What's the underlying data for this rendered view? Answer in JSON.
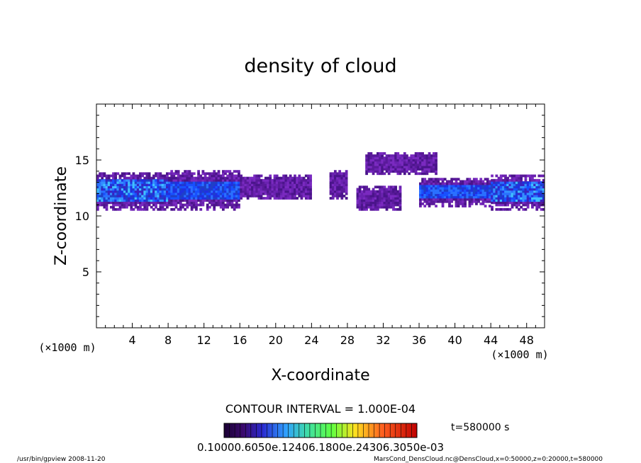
{
  "chart_data": {
    "type": "heatmap",
    "title": "density of cloud",
    "xlabel": "X-coordinate",
    "ylabel": "Z-coordinate",
    "x_unit_label": "(×1000 m)",
    "y_unit_label": "(×1000 m)",
    "xlim": [
      0,
      50
    ],
    "ylim": [
      0,
      20
    ],
    "x_ticks": [
      "4",
      "8",
      "12",
      "16",
      "20",
      "24",
      "28",
      "32",
      "36",
      "40",
      "44",
      "48"
    ],
    "y_ticks": [
      "5",
      "10",
      "15"
    ],
    "contour_interval_label": "CONTOUR INTERVAL = 1.000E-04",
    "time_label": "t=580000 s",
    "colorbar_label": "0.10000.6050e.12406.1800e.24306.3050e-03",
    "colorbar_colors": [
      "#1a0033",
      "#3b0a6e",
      "#5b1a9e",
      "#2a2ad0",
      "#2060ff",
      "#30a0ff",
      "#40d0e0",
      "#40e0a0",
      "#60ff40",
      "#c0ff30",
      "#ffe020",
      "#ffa020",
      "#ff6020",
      "#ff2010",
      "#c00000"
    ],
    "cloud_layers": [
      {
        "x": [
          0,
          2
        ],
        "z": [
          10.5,
          13.8
        ],
        "intensity": "high"
      },
      {
        "x": [
          2,
          8
        ],
        "z": [
          10.5,
          13.8
        ],
        "intensity": "high"
      },
      {
        "x": [
          8,
          16
        ],
        "z": [
          10.5,
          14.0
        ],
        "intensity": "medium"
      },
      {
        "x": [
          16,
          24
        ],
        "z": [
          11.5,
          13.5
        ],
        "intensity": "low"
      },
      {
        "x": [
          26,
          28
        ],
        "z": [
          11.5,
          14.0
        ],
        "intensity": "low"
      },
      {
        "x": [
          30,
          38
        ],
        "z": [
          13.7,
          15.5
        ],
        "intensity": "low"
      },
      {
        "x": [
          29,
          34
        ],
        "z": [
          10.5,
          12.5
        ],
        "intensity": "low"
      },
      {
        "x": [
          36,
          44
        ],
        "z": [
          10.8,
          13.3
        ],
        "intensity": "medium"
      },
      {
        "x": [
          44,
          50
        ],
        "z": [
          10.5,
          13.5
        ],
        "intensity": "high"
      }
    ]
  },
  "footer": {
    "left": "/usr/bin/gpview 2008-11-20",
    "right": "MarsCond_DensCloud.nc@DensCloud,x=0:50000,z=0:20000,t=580000"
  }
}
